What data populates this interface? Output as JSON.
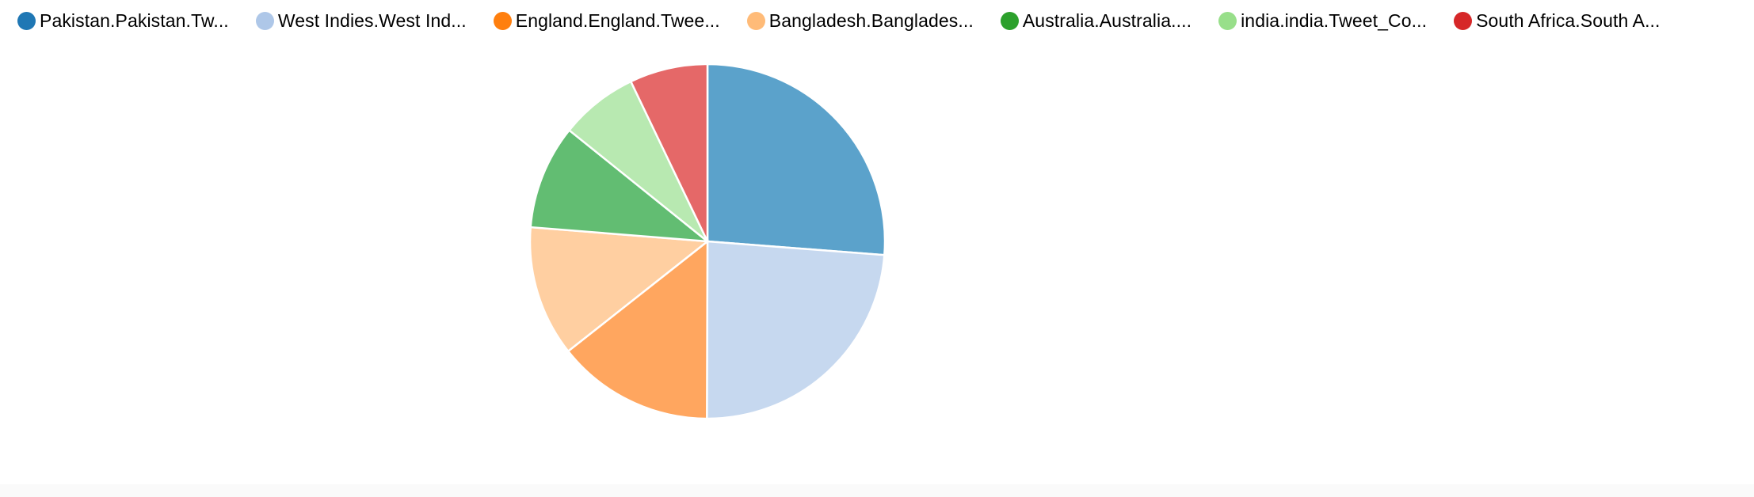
{
  "chart_data": {
    "type": "pie",
    "categories": [
      "Pakistan.Pakistan.Tw...",
      "West Indies.West Ind...",
      "England.England.Twee...",
      "Bangladesh.Banglades...",
      "Australia.Australia....",
      "india.india.Tweet_Co...",
      "South Africa.South A..."
    ],
    "values": [
      26.2,
      23.8,
      14.3,
      11.9,
      9.5,
      7.1,
      7.1
    ],
    "legend_position": "top-left",
    "legend_colors": [
      "#1f77b4",
      "#aec7e8",
      "#ff7f0e",
      "#ffbb78",
      "#2ca02c",
      "#98df8a",
      "#d62728"
    ],
    "slice_colors": [
      "#5ba2cb",
      "#c6d8ef",
      "#ffa65f",
      "#ffcfa1",
      "#62bd72",
      "#b8e9b1",
      "#e56868"
    ]
  }
}
